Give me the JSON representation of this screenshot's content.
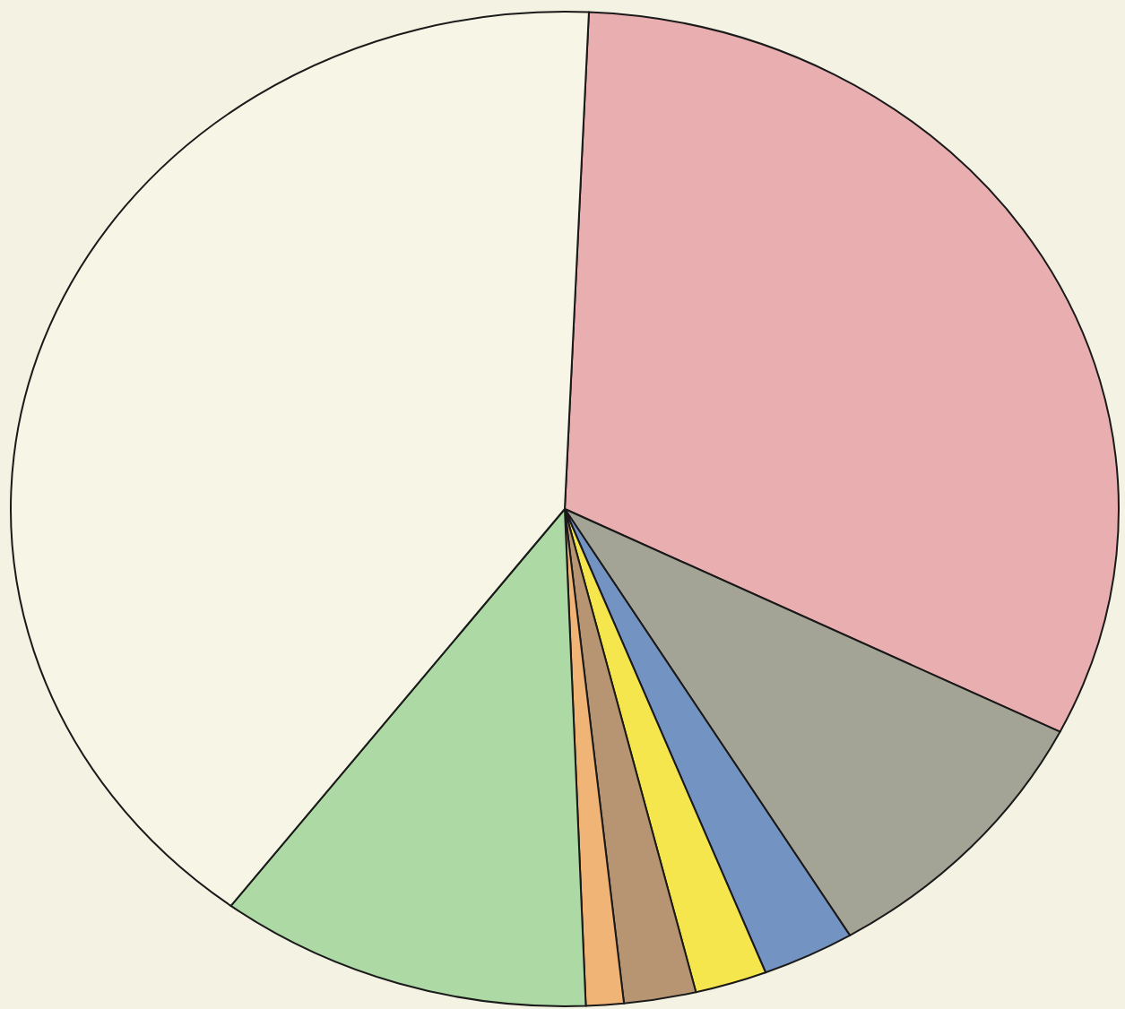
{
  "chart_data": {
    "type": "pie",
    "values": [
      31.7,
      9.0,
      2.7,
      2.1,
      2.1,
      1.1,
      10.9,
      40.4
    ],
    "colors": [
      "#e9aeb0",
      "#a3a495",
      "#7393c2",
      "#f6e64e",
      "#b89572",
      "#f0b477",
      "#acd9a4",
      "#f7f6e6"
    ]
  }
}
